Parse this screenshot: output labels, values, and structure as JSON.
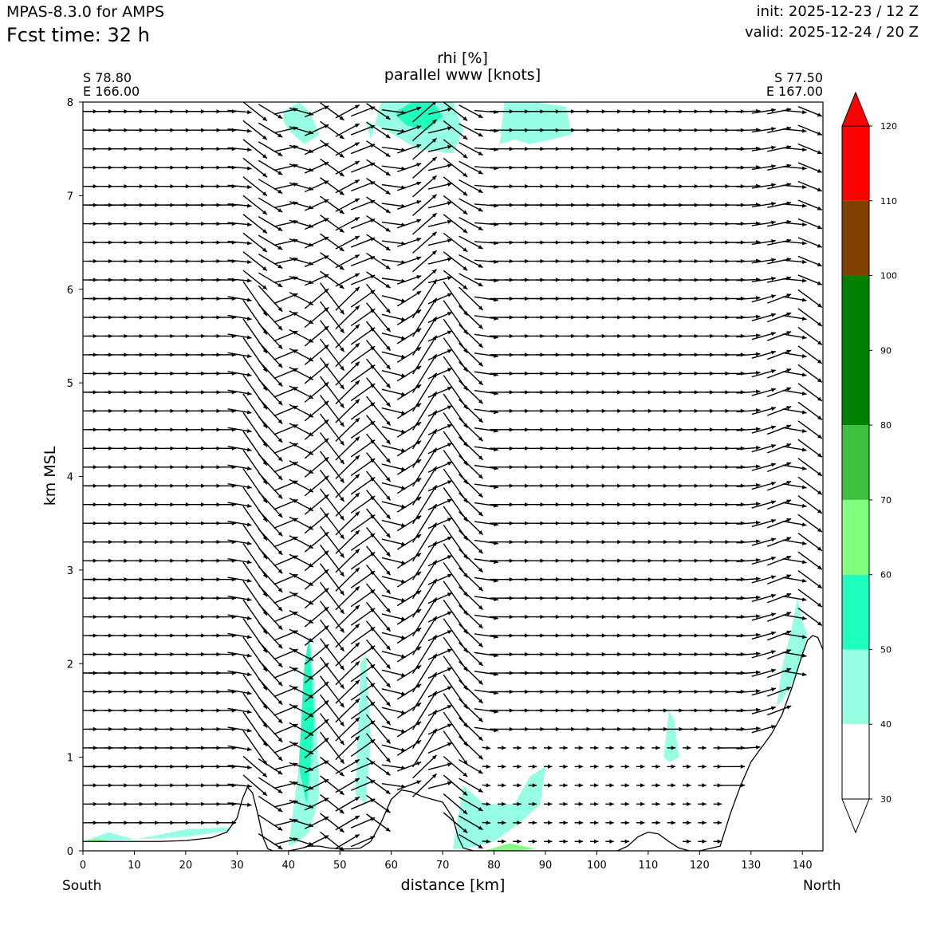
{
  "header": {
    "model": "MPAS-8.3.0 for AMPS",
    "fcst_time": "Fcst time:   32 h",
    "init": "init: 2025-12-23 / 12 Z",
    "valid": "valid: 2025-12-24 / 20 Z"
  },
  "chart_data": {
    "type": "cross-section",
    "title": "rhi [%]",
    "subtitle": "parallel www [knots]",
    "xlabel": "distance [km]",
    "ylabel": "km MSL",
    "xlim": [
      0,
      144
    ],
    "ylim": [
      0,
      8
    ],
    "x_ticks": [
      0,
      10,
      20,
      30,
      40,
      50,
      60,
      70,
      80,
      90,
      100,
      110,
      120,
      130,
      140
    ],
    "y_ticks": [
      0,
      1,
      2,
      3,
      4,
      5,
      6,
      7,
      8
    ],
    "start_point": [
      "S 78.80",
      "E 166.00"
    ],
    "end_point": [
      "S 77.50",
      "E 167.00"
    ],
    "left_label": "South",
    "right_label": "North",
    "terrain": {
      "x": [
        0,
        5,
        10,
        15,
        20,
        25,
        28,
        30,
        31,
        32,
        33,
        34,
        35,
        36,
        37,
        38,
        39,
        40,
        42,
        44,
        46,
        48,
        50,
        52,
        54,
        56,
        58,
        60,
        62,
        64,
        66,
        68,
        70,
        72,
        73,
        74,
        76,
        80,
        90,
        100,
        104,
        106,
        108,
        110,
        112,
        114,
        116,
        118,
        120,
        124,
        126,
        128,
        130,
        132,
        134,
        136,
        138,
        140,
        141,
        142,
        143,
        144
      ],
      "y": [
        0.1,
        0.1,
        0.1,
        0.1,
        0.11,
        0.14,
        0.2,
        0.35,
        0.55,
        0.68,
        0.62,
        0.4,
        0.15,
        0.02,
        0.0,
        0.0,
        0.0,
        0.0,
        0.02,
        0.05,
        0.05,
        0.03,
        0.02,
        0.02,
        0.03,
        0.1,
        0.3,
        0.55,
        0.65,
        0.63,
        0.58,
        0.55,
        0.52,
        0.35,
        0.15,
        0.03,
        0.0,
        0.0,
        0.0,
        0.0,
        0.0,
        0.05,
        0.15,
        0.2,
        0.18,
        0.1,
        0.03,
        0.0,
        0.0,
        0.05,
        0.4,
        0.7,
        0.95,
        1.1,
        1.25,
        1.45,
        1.75,
        2.1,
        2.25,
        2.3,
        2.28,
        2.15
      ]
    },
    "rhi_regions": [
      {
        "level": "40-50",
        "color": "#97ffe3",
        "polygon_x": [
          56,
          58,
          63,
          72,
          74,
          72,
          65,
          59,
          55
        ],
        "polygon_y": [
          7.6,
          8.0,
          8.0,
          8.0,
          7.7,
          7.45,
          7.5,
          7.7,
          7.8
        ]
      },
      {
        "level": "40-50",
        "color": "#97ffe3",
        "polygon_x": [
          39,
          42,
          44,
          46,
          43,
          40,
          39
        ],
        "polygon_y": [
          7.9,
          8.0,
          7.9,
          7.65,
          7.55,
          7.7,
          7.8
        ]
      },
      {
        "level": "40-50",
        "color": "#97ffe3",
        "polygon_x": [
          81,
          82,
          88,
          94,
          95,
          91,
          87,
          84,
          81
        ],
        "polygon_y": [
          7.5,
          8.0,
          8.0,
          7.95,
          7.65,
          7.6,
          7.55,
          7.6,
          7.55
        ]
      },
      {
        "level": "50-60",
        "color": "#1effbf",
        "polygon_x": [
          61,
          64,
          68,
          70,
          67,
          63,
          61
        ],
        "polygon_y": [
          7.9,
          8.0,
          8.0,
          7.85,
          7.7,
          7.75,
          7.85
        ]
      },
      {
        "level": "40-50",
        "color": "#97ffe3",
        "polygon_x": [
          40,
          42,
          43,
          44,
          45,
          46,
          44,
          42,
          40
        ],
        "polygon_y": [
          0.05,
          0.9,
          2.0,
          2.3,
          1.8,
          0.6,
          0.2,
          0.1,
          0.05
        ]
      },
      {
        "level": "50-60",
        "color": "#1effbf",
        "polygon_x": [
          42,
          43,
          44,
          45,
          43.5,
          42
        ],
        "polygon_y": [
          0.9,
          1.9,
          2.3,
          1.4,
          0.5,
          0.9
        ]
      },
      {
        "level": "40-50",
        "color": "#97ffe3",
        "polygon_x": [
          53,
          54,
          55,
          56,
          55,
          53
        ],
        "polygon_y": [
          0.6,
          2.0,
          2.1,
          1.2,
          0.5,
          0.6
        ]
      },
      {
        "level": "40-50",
        "color": "#97ffe3",
        "polygon_x": [
          72,
          74,
          78,
          84,
          87,
          90,
          89,
          85,
          80,
          74,
          72
        ],
        "polygon_y": [
          0.02,
          0.7,
          0.5,
          0.5,
          0.8,
          0.9,
          0.5,
          0.3,
          0.1,
          0.02,
          0.02
        ]
      },
      {
        "level": "40-50",
        "color": "#97ffe3",
        "polygon_x": [
          113,
          114,
          115,
          116,
          114,
          113
        ],
        "polygon_y": [
          1.0,
          1.5,
          1.4,
          1.0,
          0.95,
          1.0
        ]
      },
      {
        "level": "40-50",
        "color": "#97ffe3",
        "polygon_x": [
          135,
          136,
          138,
          139,
          140,
          141,
          139,
          136,
          135
        ],
        "polygon_y": [
          1.55,
          1.95,
          2.4,
          2.7,
          2.45,
          2.3,
          1.9,
          1.6,
          1.55
        ]
      },
      {
        "level": "40-50",
        "color": "#97ffe3",
        "polygon_x": [
          0,
          5,
          10,
          20,
          28,
          29,
          20,
          10,
          0
        ],
        "polygon_y": [
          0.1,
          0.2,
          0.12,
          0.23,
          0.25,
          0.22,
          0.15,
          0.12,
          0.1
        ]
      },
      {
        "level": "60-70",
        "color": "#80ff80",
        "polygon_x": [
          0,
          3,
          5,
          0
        ],
        "polygon_y": [
          0.1,
          0.13,
          0.1,
          0.1
        ]
      },
      {
        "level": "60-70",
        "color": "#80ff80",
        "polygon_x": [
          78,
          83,
          88,
          84,
          78
        ],
        "polygon_y": [
          0.0,
          0.08,
          0.02,
          0.0,
          0.0
        ]
      }
    ],
    "wind_field": {
      "units": "knots",
      "component": "parallel www",
      "description_source": "sampled wind vectors",
      "columns_x_step_km": 3,
      "levels_km_step": 0.2
    },
    "colorbar": {
      "label_ticks": [
        30,
        40,
        50,
        60,
        70,
        80,
        90,
        100,
        110,
        120
      ],
      "bins": [
        {
          "from": 30,
          "to": 40,
          "color": "#ffffff"
        },
        {
          "from": 40,
          "to": 50,
          "color": "#97ffe3"
        },
        {
          "from": 50,
          "to": 60,
          "color": "#1effbf"
        },
        {
          "from": 60,
          "to": 70,
          "color": "#80ff80"
        },
        {
          "from": 70,
          "to": 80,
          "color": "#40c040"
        },
        {
          "from": 80,
          "to": 100,
          "color": "#008000"
        },
        {
          "from": 100,
          "to": 110,
          "color": "#804000"
        },
        {
          "from": 110,
          "to": 120,
          "color": "#ff0000"
        }
      ],
      "extend": "both",
      "under_color": "#ffffff",
      "over_color": "#ff0000"
    }
  }
}
